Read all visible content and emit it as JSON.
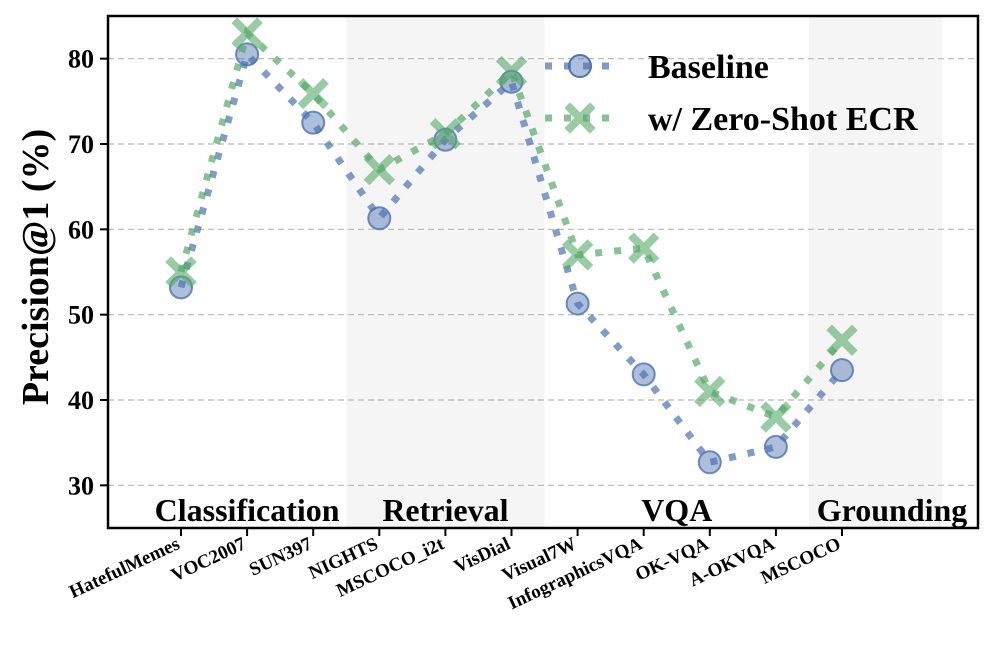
{
  "chart_data": {
    "type": "line",
    "ylabel": "Precision@1 (%)",
    "xlabel": "",
    "ylim": [
      25,
      85
    ],
    "yticks": [
      30,
      40,
      50,
      60,
      70,
      80
    ],
    "categories": [
      "HatefulMemes",
      "VOC2007",
      "SUN397",
      "NIGHTS",
      "MSCOCO_i2t",
      "VisDial",
      "Visual7W",
      "InfographicsVQA",
      "OK-VQA",
      "A-OKVQA",
      "MSCOCO"
    ],
    "series": [
      {
        "name": "Baseline",
        "color": "#4c72b0",
        "marker": "circle",
        "values": [
          53.2,
          80.5,
          72.5,
          61.3,
          70.5,
          77.3,
          51.3,
          43.0,
          32.7,
          34.5,
          43.5
        ]
      },
      {
        "name": "w/ Zero-Shot ECR",
        "color": "#55a868",
        "marker": "x",
        "values": [
          55.0,
          83.0,
          75.9,
          67.0,
          71.2,
          78.5,
          57.0,
          57.8,
          41.0,
          38.0,
          47.0
        ]
      }
    ],
    "groups": [
      {
        "label": "Classification",
        "start": 0,
        "end": 2,
        "shaded": false
      },
      {
        "label": "Retrieval",
        "start": 3,
        "end": 5,
        "shaded": true
      },
      {
        "label": "VQA",
        "start": 6,
        "end": 9,
        "shaded": false
      },
      {
        "label": "Grounding",
        "start": 10,
        "end": 10,
        "shaded": true
      }
    ],
    "grid": "horizontal-dashed",
    "legend": "top-right"
  }
}
